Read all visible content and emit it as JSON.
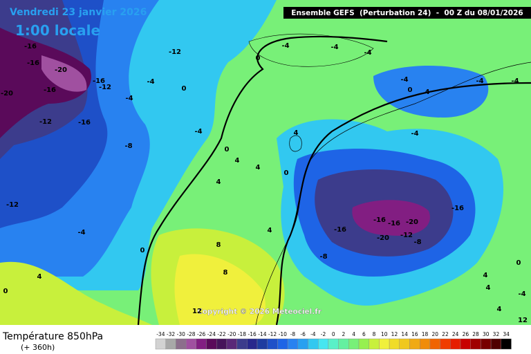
{
  "header": {
    "date": "Vendredi 23 janvier 2026",
    "time": "1:00 locale",
    "model": "Ensemble GEFS  (Perturbation 24)  -  00 Z du 08/01/2026"
  },
  "map": {
    "contour_labels": [
      -16,
      -16,
      -20,
      -20,
      -16,
      -16,
      -12,
      -12,
      -16,
      -8,
      -4,
      -4,
      -12,
      0,
      -4,
      0,
      -4,
      -4,
      -4,
      0,
      4,
      4,
      4,
      0,
      4,
      -12,
      -4,
      0,
      8,
      8,
      4,
      0,
      4,
      -8,
      -16,
      -16,
      -16,
      -20,
      -20,
      -12,
      -8,
      -16,
      -4,
      0,
      4,
      -4,
      -4,
      -4,
      0,
      4,
      4,
      12,
      12,
      -4,
      4
    ],
    "copyright": "Copyright © 2026 Meteociel.fr"
  },
  "legend": {
    "title": "Température 850hPa",
    "subtitle": "(+ 360h)",
    "scale": [
      -34,
      -32,
      -30,
      -28,
      -26,
      -24,
      -22,
      -20,
      -18,
      -16,
      -14,
      -12,
      -10,
      -8,
      -6,
      -4,
      -2,
      0,
      2,
      4,
      6,
      8,
      10,
      12,
      14,
      16,
      18,
      20,
      22,
      24,
      26,
      28,
      30,
      32,
      34
    ],
    "colors": [
      "#d2d2d2",
      "#a8a8a8",
      "#8c6e8c",
      "#a050a0",
      "#821e82",
      "#5a0a5a",
      "#46145a",
      "#5a2878",
      "#3c3c8c",
      "#28288c",
      "#1e3ca0",
      "#1e50c8",
      "#1e64e6",
      "#2882f0",
      "#28a0f0",
      "#32c8f0",
      "#46e6f0",
      "#5af0c8",
      "#64f0a0",
      "#78f078",
      "#96f050",
      "#c8f03c",
      "#f0f03c",
      "#f0dc28",
      "#f0c81e",
      "#f0aa14",
      "#f08c0a",
      "#f06400",
      "#f03c00",
      "#e61e00",
      "#c80000",
      "#a00000",
      "#780000",
      "#500000",
      "#000000"
    ]
  }
}
